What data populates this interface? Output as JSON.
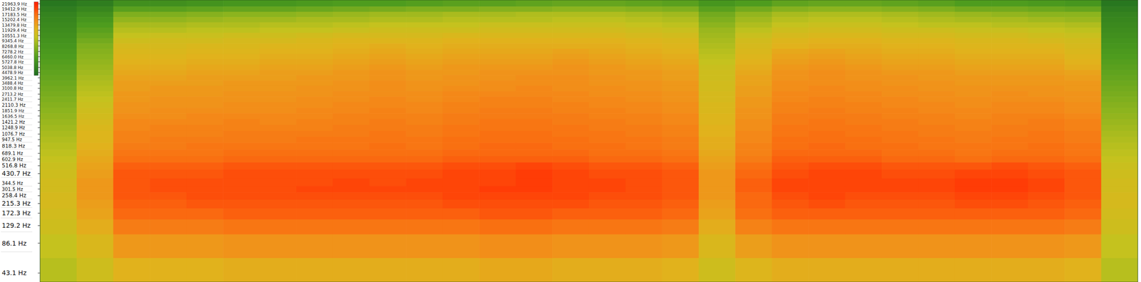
{
  "chart_data": {
    "type": "heatmap",
    "log": "y",
    "tick_labels": "y",
    "ylim": [
      35,
      24000
    ],
    "yticks": [
      {
        "value": 21963.9,
        "label": "21963.9 Hz"
      },
      {
        "value": 19412.9,
        "label": "19412.9 Hz"
      },
      {
        "value": 17183.5,
        "label": "17183.5 Hz"
      },
      {
        "value": 15202.4,
        "label": "15202.4 Hz"
      },
      {
        "value": 13479.8,
        "label": "13479.8 Hz"
      },
      {
        "value": 11929.4,
        "label": "11929.4 Hz"
      },
      {
        "value": 10551.3,
        "label": "10551.3 Hz"
      },
      {
        "value": 9345.4,
        "label": "9345.4 Hz"
      },
      {
        "value": 8268.8,
        "label": "8268.8 Hz"
      },
      {
        "value": 7278.2,
        "label": "7278.2 Hz"
      },
      {
        "value": 6460.0,
        "label": "6460.0 Hz"
      },
      {
        "value": 5727.8,
        "label": "5727.8 Hz"
      },
      {
        "value": 5038.8,
        "label": "5038.8 Hz"
      },
      {
        "value": 4478.9,
        "label": "4478.9 Hz"
      },
      {
        "value": 3962.1,
        "label": "3962.1 Hz"
      },
      {
        "value": 3488.4,
        "label": "3488.4 Hz"
      },
      {
        "value": 3100.8,
        "label": "3100.8 Hz"
      },
      {
        "value": 2713.2,
        "label": "2713.2 Hz"
      },
      {
        "value": 2411.7,
        "label": "2411.7 Hz"
      },
      {
        "value": 2110.3,
        "label": "2110.3 Hz"
      },
      {
        "value": 1851.9,
        "label": "1851.9 Hz"
      },
      {
        "value": 1636.5,
        "label": "1636.5 Hz"
      },
      {
        "value": 1421.2,
        "label": "1421.2 Hz"
      },
      {
        "value": 1248.9,
        "label": "1248.9 Hz"
      },
      {
        "value": 1076.7,
        "label": "1076.7 Hz"
      },
      {
        "value": 947.5,
        "label": "947.5 Hz"
      },
      {
        "value": 818.3,
        "label": "818.3 Hz"
      },
      {
        "value": 689.1,
        "label": "689.1 Hz"
      },
      {
        "value": 602.9,
        "label": "602.9 Hz"
      },
      {
        "value": 516.8,
        "label": "516.8 Hz"
      },
      {
        "value": 430.7,
        "label": "430.7 Hz"
      },
      {
        "value": 344.5,
        "label": "344.5 Hz"
      },
      {
        "value": 301.5,
        "label": "301.5 Hz"
      },
      {
        "value": 258.4,
        "label": "258.4 Hz"
      },
      {
        "value": 215.3,
        "label": "215.3 Hz"
      },
      {
        "value": 172.3,
        "label": "172.3 Hz"
      },
      {
        "value": 129.2,
        "label": "129.2 Hz"
      },
      {
        "value": 86.1,
        "label": "86.1 Hz"
      },
      {
        "value": 43.1,
        "label": "43.1 Hz"
      }
    ],
    "zlim": [
      -85,
      -22
    ],
    "cells": [
      [
        -82,
        -80,
        -74,
        -74,
        -73,
        -72,
        -72,
        -71,
        -70,
        -70,
        -69,
        -68,
        -68,
        -67,
        -66,
        -66,
        -67,
        -68,
        -72,
        -70,
        -67,
        -66,
        -66,
        -67,
        -68,
        -70,
        -70,
        -71,
        -72,
        -82
      ],
      [
        -80,
        -77,
        -68,
        -68,
        -67,
        -66,
        -66,
        -65,
        -64,
        -63,
        -62,
        -62,
        -61,
        -61,
        -60,
        -60,
        -61,
        -62,
        -68,
        -64,
        -61,
        -60,
        -60,
        -61,
        -62,
        -64,
        -64,
        -65,
        -66,
        -80
      ],
      [
        -78,
        -74,
        -62,
        -62,
        -61,
        -60,
        -60,
        -59,
        -58,
        -57,
        -57,
        -56,
        -56,
        -55,
        -55,
        -55,
        -56,
        -57,
        -64,
        -59,
        -56,
        -55,
        -55,
        -56,
        -57,
        -58,
        -59,
        -60,
        -60,
        -78
      ],
      [
        -77,
        -72,
        -59,
        -59,
        -58,
        -57,
        -57,
        -56,
        -56,
        -55,
        -55,
        -54,
        -54,
        -54,
        -53,
        -53,
        -54,
        -55,
        -62,
        -57,
        -54,
        -53,
        -53,
        -54,
        -55,
        -56,
        -56,
        -57,
        -58,
        -77
      ],
      [
        -76,
        -70,
        -56,
        -56,
        -55,
        -55,
        -54,
        -54,
        -53,
        -52,
        -52,
        -52,
        -51,
        -51,
        -51,
        -51,
        -52,
        -53,
        -60,
        -55,
        -52,
        -51,
        -51,
        -52,
        -53,
        -53,
        -54,
        -54,
        -55,
        -76
      ],
      [
        -75,
        -68,
        -54,
        -54,
        -53,
        -53,
        -52,
        -52,
        -51,
        -50,
        -50,
        -50,
        -49,
        -49,
        -49,
        -49,
        -50,
        -51,
        -58,
        -53,
        -50,
        -49,
        -49,
        -50,
        -50,
        -51,
        -51,
        -52,
        -53,
        -75
      ],
      [
        -74,
        -66,
        -52,
        -51,
        -51,
        -50,
        -50,
        -49,
        -48,
        -48,
        -48,
        -47,
        -47,
        -47,
        -47,
        -47,
        -48,
        -49,
        -57,
        -51,
        -48,
        -47,
        -47,
        -48,
        -48,
        -49,
        -49,
        -50,
        -51,
        -74
      ],
      [
        -73,
        -64,
        -50,
        -49,
        -49,
        -48,
        -48,
        -47,
        -46,
        -46,
        -46,
        -45,
        -45,
        -45,
        -45,
        -45,
        -46,
        -47,
        -56,
        -49,
        -46,
        -45,
        -45,
        -46,
        -46,
        -47,
        -47,
        -48,
        -49,
        -73
      ],
      [
        -72,
        -62,
        -48,
        -48,
        -47,
        -47,
        -46,
        -46,
        -45,
        -44,
        -45,
        -44,
        -44,
        -44,
        -44,
        -44,
        -45,
        -46,
        -55,
        -48,
        -45,
        -44,
        -44,
        -45,
        -45,
        -46,
        -46,
        -46,
        -48,
        -72
      ],
      [
        -71,
        -61,
        -47,
        -47,
        -46,
        -46,
        -45,
        -45,
        -44,
        -43,
        -44,
        -43,
        -43,
        -43,
        -42,
        -43,
        -44,
        -45,
        -54,
        -47,
        -43,
        -42,
        -43,
        -44,
        -44,
        -45,
        -45,
        -45,
        -47,
        -71
      ],
      [
        -70,
        -60,
        -46,
        -46,
        -45,
        -45,
        -44,
        -44,
        -43,
        -42,
        -43,
        -42,
        -42,
        -42,
        -41,
        -42,
        -43,
        -44,
        -53,
        -46,
        -42,
        -41,
        -42,
        -43,
        -43,
        -44,
        -44,
        -44,
        -46,
        -70
      ],
      [
        -69,
        -59,
        -45,
        -45,
        -44,
        -44,
        -43,
        -43,
        -42,
        -41,
        -42,
        -41,
        -41,
        -41,
        -40,
        -41,
        -42,
        -43,
        -52,
        -45,
        -41,
        -40,
        -41,
        -42,
        -42,
        -43,
        -43,
        -43,
        -45,
        -69
      ],
      [
        -68,
        -58,
        -44,
        -44,
        -43,
        -43,
        -42,
        -42,
        -41,
        -40,
        -41,
        -40,
        -40,
        -40,
        -39,
        -40,
        -41,
        -42,
        -51,
        -44,
        -40,
        -39,
        -40,
        -41,
        -41,
        -42,
        -42,
        -42,
        -44,
        -68
      ],
      [
        -67,
        -57,
        -43,
        -43,
        -42,
        -42,
        -41,
        -41,
        -40,
        -39,
        -40,
        -40,
        -39,
        -39,
        -39,
        -40,
        -40,
        -41,
        -50,
        -43,
        -39,
        -38,
        -39,
        -40,
        -40,
        -41,
        -41,
        -41,
        -42,
        -67
      ],
      [
        -66,
        -56,
        -42,
        -42,
        -41,
        -41,
        -41,
        -40,
        -40,
        -39,
        -40,
        -39,
        -39,
        -38,
        -38,
        -39,
        -40,
        -41,
        -50,
        -42,
        -39,
        -38,
        -39,
        -39,
        -40,
        -40,
        -40,
        -40,
        -41,
        -66
      ],
      [
        -65,
        -55,
        -41,
        -41,
        -41,
        -40,
        -40,
        -40,
        -39,
        -38,
        -39,
        -39,
        -38,
        -38,
        -38,
        -39,
        -39,
        -40,
        -49,
        -42,
        -38,
        -38,
        -38,
        -39,
        -39,
        -40,
        -40,
        -40,
        -40,
        -65
      ],
      [
        -64,
        -54,
        -41,
        -40,
        -40,
        -40,
        -40,
        -39,
        -39,
        -38,
        -39,
        -38,
        -38,
        -37,
        -38,
        -38,
        -39,
        -40,
        -49,
        -41,
        -38,
        -37,
        -38,
        -38,
        -39,
        -39,
        -39,
        -39,
        -40,
        -64
      ],
      [
        -63,
        -53,
        -40,
        -40,
        -40,
        -39,
        -39,
        -39,
        -38,
        -38,
        -38,
        -37,
        -37,
        -37,
        -37,
        -38,
        -38,
        -39,
        -48,
        -41,
        -37,
        -37,
        -37,
        -38,
        -38,
        -39,
        -38,
        -39,
        -39,
        -63
      ],
      [
        -62,
        -52,
        -40,
        -39,
        -39,
        -39,
        -39,
        -38,
        -38,
        -37,
        -38,
        -37,
        -36,
        -36,
        -37,
        -37,
        -38,
        -39,
        -48,
        -40,
        -37,
        -36,
        -37,
        -37,
        -38,
        -38,
        -38,
        -38,
        -39,
        -62
      ],
      [
        -61,
        -51,
        -39,
        -39,
        -39,
        -38,
        -38,
        -38,
        -37,
        -37,
        -37,
        -36,
        -36,
        -36,
        -36,
        -37,
        -37,
        -38,
        -47,
        -40,
        -36,
        -36,
        -36,
        -37,
        -37,
        -38,
        -37,
        -37,
        -38,
        -61
      ],
      [
        -60,
        -50,
        -39,
        -38,
        -38,
        -38,
        -38,
        -37,
        -37,
        -36,
        -37,
        -36,
        -35,
        -35,
        -36,
        -36,
        -37,
        -38,
        -47,
        -39,
        -36,
        -35,
        -36,
        -36,
        -37,
        -37,
        -37,
        -37,
        -38,
        -60
      ],
      [
        -59,
        -49,
        -38,
        -38,
        -37,
        -37,
        -37,
        -37,
        -36,
        -36,
        -36,
        -35,
        -35,
        -35,
        -35,
        -36,
        -36,
        -37,
        -46,
        -39,
        -35,
        -35,
        -35,
        -36,
        -36,
        -37,
        -36,
        -36,
        -37,
        -59
      ],
      [
        -58,
        -48,
        -37,
        -37,
        -37,
        -36,
        -37,
        -36,
        -36,
        -35,
        -36,
        -35,
        -34,
        -34,
        -35,
        -35,
        -36,
        -37,
        -46,
        -38,
        -35,
        -34,
        -35,
        -35,
        -36,
        -36,
        -36,
        -35,
        -36,
        -58
      ],
      [
        -57,
        -47,
        -37,
        -36,
        -36,
        -36,
        -36,
        -36,
        -35,
        -35,
        -35,
        -34,
        -34,
        -34,
        -34,
        -35,
        -35,
        -36,
        -45,
        -38,
        -34,
        -34,
        -34,
        -35,
        -35,
        -36,
        -35,
        -35,
        -36,
        -57
      ],
      [
        -56,
        -46,
        -36,
        -36,
        -36,
        -35,
        -35,
        -35,
        -35,
        -34,
        -35,
        -34,
        -33,
        -33,
        -34,
        -34,
        -35,
        -36,
        -45,
        -37,
        -34,
        -33,
        -34,
        -34,
        -35,
        -35,
        -35,
        -34,
        -35,
        -56
      ],
      [
        -55,
        -46,
        -36,
        -35,
        -35,
        -35,
        -35,
        -34,
        -34,
        -34,
        -34,
        -33,
        -33,
        -33,
        -33,
        -34,
        -34,
        -35,
        -44,
        -37,
        -33,
        -33,
        -33,
        -34,
        -34,
        -35,
        -34,
        -34,
        -35,
        -55
      ],
      [
        -54,
        -45,
        -35,
        -35,
        -34,
        -34,
        -34,
        -34,
        -34,
        -33,
        -34,
        -33,
        -32,
        -32,
        -33,
        -33,
        -34,
        -35,
        -44,
        -36,
        -33,
        -32,
        -33,
        -33,
        -34,
        -34,
        -34,
        -33,
        -34,
        -54
      ],
      [
        -53,
        -44,
        -34,
        -34,
        -34,
        -33,
        -33,
        -33,
        -33,
        -33,
        -33,
        -32,
        -32,
        -32,
        -32,
        -33,
        -33,
        -34,
        -43,
        -36,
        -32,
        -32,
        -32,
        -33,
        -33,
        -34,
        -33,
        -33,
        -34,
        -53
      ],
      [
        -52,
        -43,
        -33,
        -33,
        -33,
        -32,
        -32,
        -32,
        -32,
        -32,
        -32,
        -31,
        -31,
        -31,
        -31,
        -32,
        -32,
        -33,
        -42,
        -35,
        -31,
        -31,
        -31,
        -32,
        -32,
        -33,
        -32,
        -32,
        -33,
        -52
      ],
      [
        -51,
        -42,
        -31,
        -31,
        -31,
        -30,
        -30,
        -30,
        -30,
        -30,
        -30,
        -29,
        -29,
        -28,
        -29,
        -30,
        -30,
        -31,
        -41,
        -33,
        -30,
        -29,
        -29,
        -30,
        -30,
        -30,
        -29,
        -30,
        -31,
        -51
      ],
      [
        -50,
        -41,
        -30,
        -30,
        -30,
        -29,
        -29,
        -29,
        -29,
        -29,
        -29,
        -28,
        -28,
        -27,
        -28,
        -29,
        -29,
        -30,
        -40,
        -32,
        -29,
        -28,
        -28,
        -29,
        -29,
        -28,
        -28,
        -29,
        -30,
        -50
      ],
      [
        -49,
        -40,
        -30,
        -29,
        -29,
        -29,
        -29,
        -29,
        -28,
        -29,
        -28,
        -28,
        -28,
        -27,
        -28,
        -28,
        -29,
        -30,
        -40,
        -31,
        -28,
        -28,
        -28,
        -28,
        -28,
        -27,
        -27,
        -28,
        -30,
        -49
      ],
      [
        -49,
        -40,
        -30,
        -29,
        -29,
        -29,
        -29,
        -28,
        -28,
        -28,
        -28,
        -28,
        -27,
        -27,
        -28,
        -28,
        -29,
        -30,
        -40,
        -31,
        -28,
        -28,
        -28,
        -28,
        -28,
        -27,
        -27,
        -28,
        -30,
        -49
      ],
      [
        -48,
        -40,
        -30,
        -30,
        -29,
        -29,
        -29,
        -29,
        -29,
        -29,
        -29,
        -28,
        -28,
        -28,
        -28,
        -29,
        -29,
        -30,
        -40,
        -32,
        -29,
        -28,
        -29,
        -29,
        -29,
        -28,
        -28,
        -29,
        -30,
        -48
      ],
      [
        -48,
        -41,
        -31,
        -31,
        -30,
        -30,
        -30,
        -30,
        -30,
        -30,
        -30,
        -29,
        -29,
        -29,
        -29,
        -30,
        -30,
        -31,
        -41,
        -32,
        -30,
        -29,
        -30,
        -30,
        -30,
        -29,
        -29,
        -30,
        -31,
        -48
      ],
      [
        -49,
        -42,
        -32,
        -32,
        -32,
        -31,
        -31,
        -31,
        -31,
        -31,
        -31,
        -31,
        -30,
        -30,
        -31,
        -31,
        -31,
        -32,
        -42,
        -33,
        -31,
        -31,
        -31,
        -31,
        -31,
        -31,
        -31,
        -31,
        -32,
        -49
      ],
      [
        -50,
        -44,
        -35,
        -35,
        -35,
        -34,
        -34,
        -34,
        -34,
        -34,
        -34,
        -34,
        -33,
        -33,
        -34,
        -34,
        -34,
        -35,
        -44,
        -36,
        -34,
        -34,
        -34,
        -34,
        -34,
        -34,
        -34,
        -34,
        -35,
        -50
      ],
      [
        -52,
        -47,
        -40,
        -40,
        -40,
        -39,
        -39,
        -39,
        -39,
        -39,
        -39,
        -39,
        -38,
        -38,
        -39,
        -39,
        -39,
        -40,
        -47,
        -41,
        -39,
        -39,
        -39,
        -39,
        -39,
        -39,
        -39,
        -39,
        -40,
        -52
      ],
      [
        -54,
        -50,
        -45,
        -45,
        -45,
        -44,
        -44,
        -44,
        -44,
        -44,
        -44,
        -44,
        -43,
        -43,
        -44,
        -44,
        -44,
        -45,
        -50,
        -46,
        -44,
        -44,
        -44,
        -44,
        -44,
        -44,
        -44,
        -44,
        -45,
        -54
      ]
    ]
  }
}
